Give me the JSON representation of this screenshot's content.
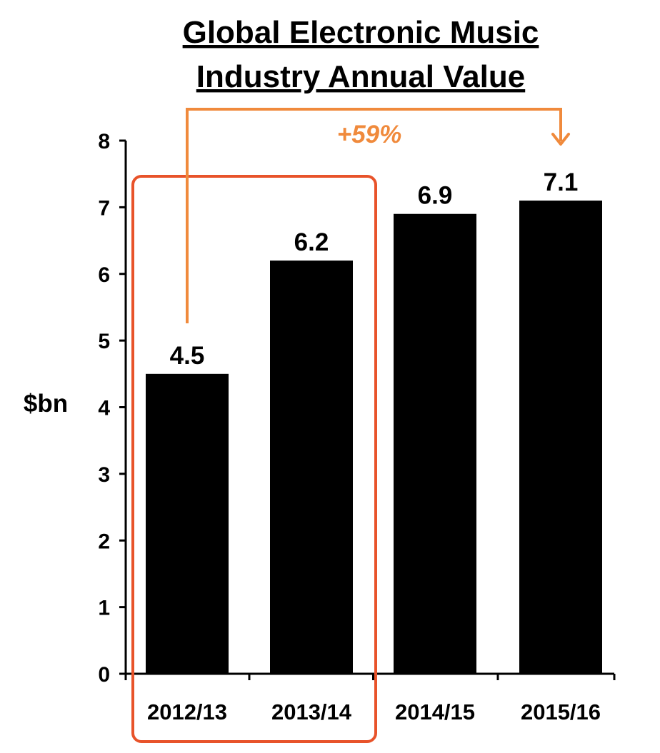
{
  "chart_data": {
    "type": "bar",
    "title_lines": [
      "Global Electronic Music",
      "Industry Annual Value"
    ],
    "categories": [
      "2012/13",
      "2013/14",
      "2014/15",
      "2015/16"
    ],
    "values": [
      4.5,
      6.2,
      6.9,
      7.1
    ],
    "value_labels": [
      "4.5",
      "6.2",
      "6.9",
      "7.1"
    ],
    "ylabel": "$bn",
    "xlabel": "",
    "ylim": [
      0,
      8
    ],
    "yticks": [
      "0",
      "1",
      "2",
      "3",
      "4",
      "5",
      "6",
      "7",
      "8"
    ],
    "grid": false,
    "legend": "none",
    "annotation": {
      "text": "+59%",
      "from_category": "2012/13",
      "to_category": "2015/16"
    },
    "highlight": {
      "categories": [
        "2012/13",
        "2013/14"
      ]
    },
    "colors": {
      "bar": "#000000",
      "axis": "#000000",
      "annotation": "#f08a3c",
      "highlight": "#e8532a"
    }
  }
}
